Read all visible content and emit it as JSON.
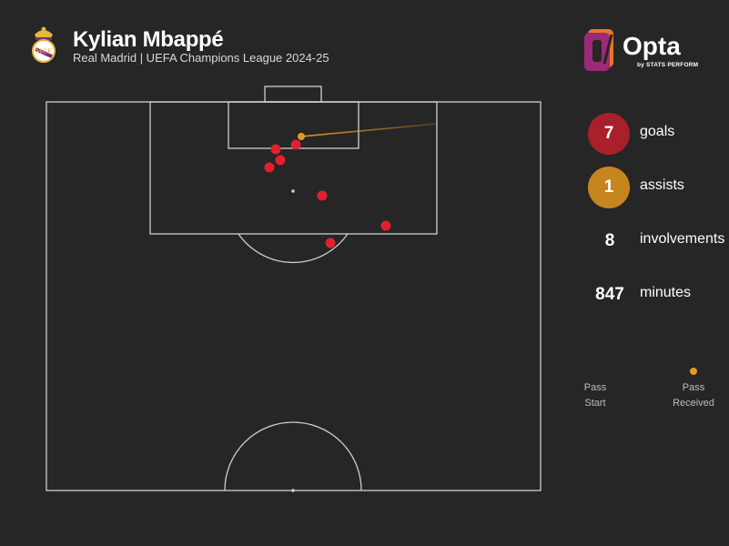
{
  "header": {
    "player_name": "Kylian Mbappé",
    "subtitle": "Real Madrid | UEFA Champions League 2024-25"
  },
  "brand": {
    "name": "Opta",
    "tagline": "by STATS PERFORM",
    "colors": {
      "logo_orange": "#e8742b",
      "logo_purple": "#9b2a78"
    }
  },
  "stats": [
    {
      "value": "7",
      "label": "goals",
      "circle_color": "#a8202b"
    },
    {
      "value": "1",
      "label": "assists",
      "circle_color": "#c6861d"
    },
    {
      "value": "8",
      "label": "involvements",
      "circle_color": ""
    },
    {
      "value": "847",
      "label": "minutes",
      "circle_color": ""
    }
  ],
  "legend": {
    "start_label_1": "Pass",
    "start_label_2": "Start",
    "end_label_1": "Pass",
    "end_label_2": "Received",
    "line_color": "#d8962a"
  },
  "colors": {
    "background": "#262626",
    "pitch_lines": "#cfcfcf",
    "goal_marker": "#e0202e",
    "assist_marker": "#e39a2b"
  }
}
